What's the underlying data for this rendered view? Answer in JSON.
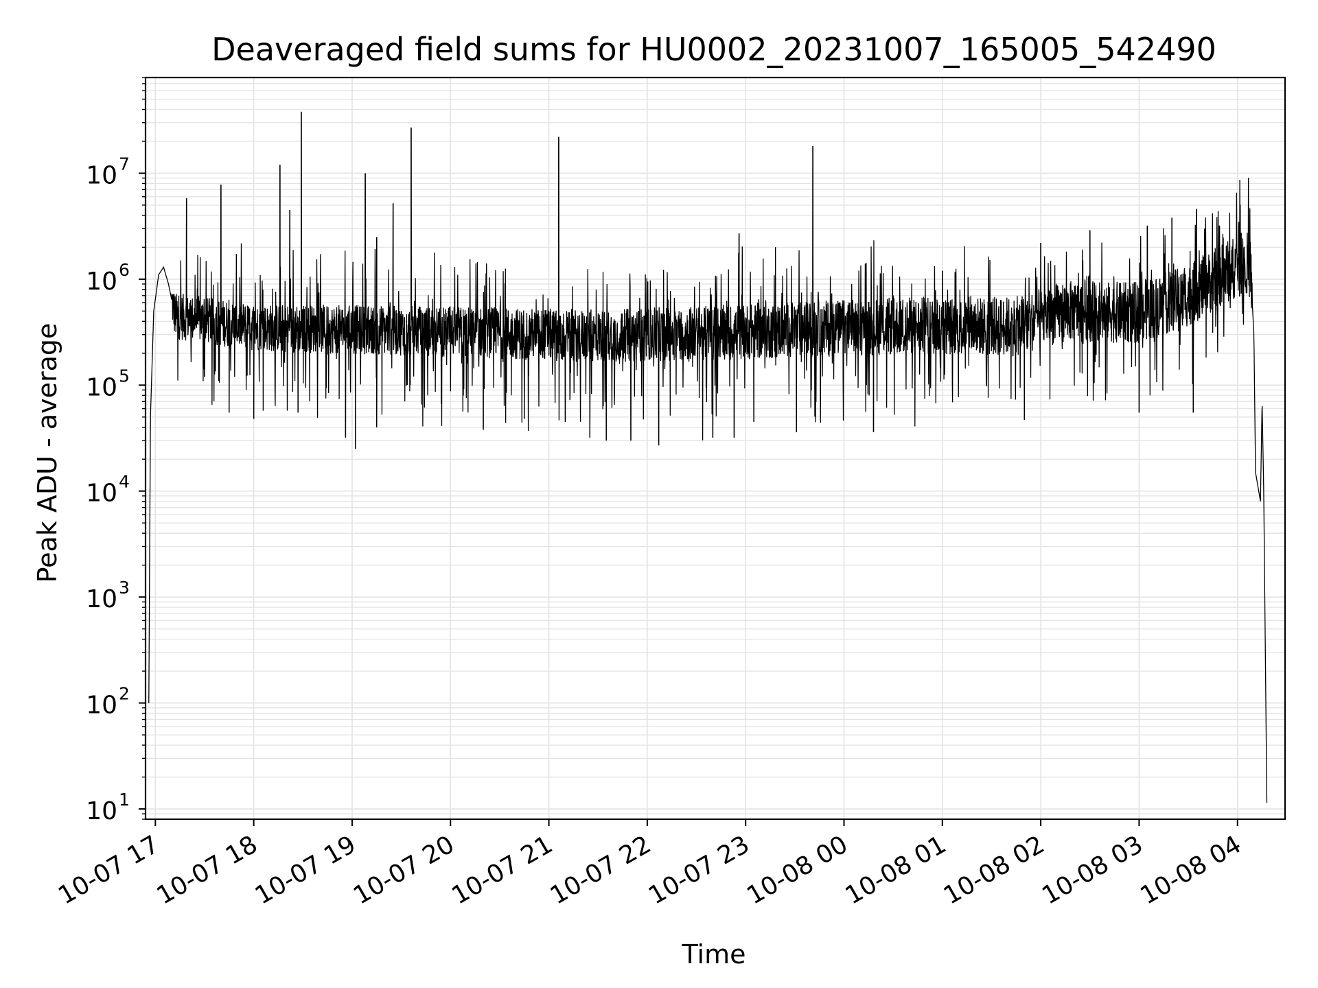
{
  "chart_data": {
    "type": "line",
    "title": "Deaveraged field sums for HU0002_20231007_165005_542490",
    "xlabel": "Time",
    "ylabel": "Peak ADU - average",
    "yscale": "log",
    "ylim": [
      8,
      80000000
    ],
    "xlim": [
      "2023-10-07 16:54",
      "2023-10-08 04:29"
    ],
    "grid": "both (major and minor)",
    "line_color": "#000000",
    "grid_color": "#e3e3e3",
    "x_ticks": [
      {
        "value": "2023-10-07 17:00",
        "label": "10-07 17"
      },
      {
        "value": "2023-10-07 18:00",
        "label": "10-07 18"
      },
      {
        "value": "2023-10-07 19:00",
        "label": "10-07 19"
      },
      {
        "value": "2023-10-07 20:00",
        "label": "10-07 20"
      },
      {
        "value": "2023-10-07 21:00",
        "label": "10-07 21"
      },
      {
        "value": "2023-10-07 22:00",
        "label": "10-07 22"
      },
      {
        "value": "2023-10-07 23:00",
        "label": "10-07 23"
      },
      {
        "value": "2023-10-08 00:00",
        "label": "10-08 00"
      },
      {
        "value": "2023-10-08 01:00",
        "label": "10-08 01"
      },
      {
        "value": "2023-10-08 02:00",
        "label": "10-08 02"
      },
      {
        "value": "2023-10-08 03:00",
        "label": "10-08 03"
      },
      {
        "value": "2023-10-08 04:00",
        "label": "10-08 04"
      }
    ],
    "y_ticks": [
      {
        "value": 10,
        "base": "10",
        "exp": "1"
      },
      {
        "value": 100,
        "base": "10",
        "exp": "2"
      },
      {
        "value": 1000,
        "base": "10",
        "exp": "3"
      },
      {
        "value": 10000,
        "base": "10",
        "exp": "4"
      },
      {
        "value": 100000,
        "base": "10",
        "exp": "5"
      },
      {
        "value": 1000000,
        "base": "10",
        "exp": "6"
      },
      {
        "value": 10000000,
        "base": "10",
        "exp": "7"
      }
    ],
    "series": [
      {
        "baseline": [
          [
            "2023-10-07 16:56",
            100
          ],
          [
            "2023-10-07 16:57",
            50000
          ],
          [
            "2023-10-07 16:59",
            500000
          ],
          [
            "2023-10-07 17:02",
            1100000
          ],
          [
            "2023-10-07 17:05",
            1300000
          ],
          [
            "2023-10-07 17:08",
            900000
          ],
          [
            "2023-10-07 17:12",
            450000
          ],
          [
            "2023-10-07 18:00",
            350000
          ],
          [
            "2023-10-07 20:00",
            320000
          ],
          [
            "2023-10-07 21:30",
            290000
          ],
          [
            "2023-10-07 23:00",
            320000
          ],
          [
            "2023-10-08 00:30",
            360000
          ],
          [
            "2023-10-08 01:45",
            360000
          ],
          [
            "2023-10-08 02:15",
            500000
          ],
          [
            "2023-10-08 03:00",
            480000
          ],
          [
            "2023-10-08 03:30",
            700000
          ],
          [
            "2023-10-08 04:05",
            1500000
          ],
          [
            "2023-10-08 04:08",
            1200000
          ],
          [
            "2023-10-08 04:10",
            300000
          ],
          [
            "2023-10-08 04:11",
            15000
          ],
          [
            "2023-10-08 04:14",
            8000
          ],
          [
            "2023-10-08 04:15",
            70000
          ],
          [
            "2023-10-08 04:16",
            10000
          ],
          [
            "2023-10-08 04:18",
            8
          ]
        ],
        "spikes": [
          [
            "2023-10-07 17:19",
            5800000
          ],
          [
            "2023-10-07 17:40",
            7800000
          ],
          [
            "2023-10-07 18:16",
            12000000
          ],
          [
            "2023-10-07 18:22",
            4500000
          ],
          [
            "2023-10-07 18:29",
            38000000
          ],
          [
            "2023-10-07 19:08",
            10000000
          ],
          [
            "2023-10-07 19:15",
            2500000
          ],
          [
            "2023-10-07 19:25",
            5200000
          ],
          [
            "2023-10-07 19:36",
            27000000
          ],
          [
            "2023-10-07 21:06",
            22000000
          ],
          [
            "2023-10-07 22:56",
            2700000
          ],
          [
            "2023-10-07 23:41",
            18000000
          ],
          [
            "2023-10-08 01:00",
            1200000
          ],
          [
            "2023-10-08 02:00",
            2200000
          ],
          [
            "2023-10-08 02:30",
            2900000
          ],
          [
            "2023-10-08 03:05",
            3200000
          ],
          [
            "2023-10-08 03:20",
            3800000
          ],
          [
            "2023-10-08 03:35",
            4600000
          ],
          [
            "2023-10-08 03:40",
            3000000
          ],
          [
            "2023-10-08 03:49",
            3200000
          ]
        ],
        "dips": [
          [
            "2023-10-07 17:30",
            120000
          ],
          [
            "2023-10-07 17:45",
            55000
          ],
          [
            "2023-10-07 18:00",
            48000
          ],
          [
            "2023-10-07 18:27",
            55000
          ],
          [
            "2023-10-07 18:56",
            32000
          ],
          [
            "2023-10-07 19:02",
            25000
          ],
          [
            "2023-10-07 19:15",
            40000
          ],
          [
            "2023-10-07 20:20",
            38000
          ],
          [
            "2023-10-07 20:45",
            48000
          ],
          [
            "2023-10-07 21:10",
            45000
          ],
          [
            "2023-10-07 21:25",
            32000
          ],
          [
            "2023-10-07 21:35",
            30000
          ],
          [
            "2023-10-07 21:50",
            30000
          ],
          [
            "2023-10-07 22:07",
            27000
          ],
          [
            "2023-10-07 22:40",
            32000
          ],
          [
            "2023-10-07 22:53",
            32000
          ],
          [
            "2023-10-07 23:05",
            45000
          ],
          [
            "2023-10-07 23:31",
            36000
          ],
          [
            "2023-10-08 00:18",
            36000
          ],
          [
            "2023-10-08 01:50",
            47000
          ],
          [
            "2023-10-08 03:00",
            55000
          ],
          [
            "2023-10-08 03:33",
            55000
          ]
        ]
      }
    ]
  }
}
